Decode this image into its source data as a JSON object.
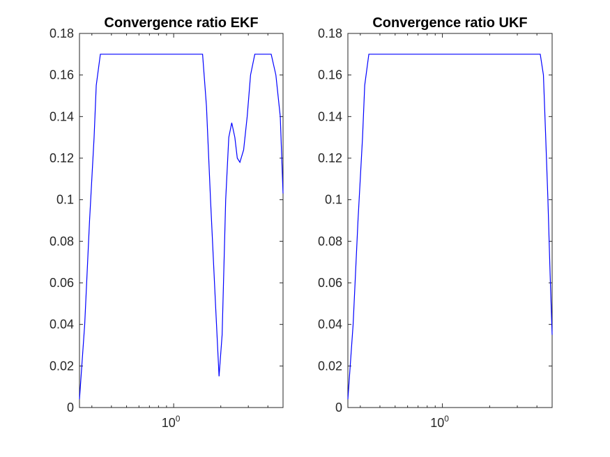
{
  "chart_data": [
    {
      "type": "line",
      "title": "Convergence ratio EKF",
      "xlabel": "",
      "ylabel": "",
      "x_scale": "log",
      "xlim": [
        0.25,
        5
      ],
      "ylim": [
        0,
        0.18
      ],
      "y_ticks": [
        "0",
        "0.02",
        "0.04",
        "0.06",
        "0.08",
        "0.1",
        "0.12",
        "0.14",
        "0.16",
        "0.18"
      ],
      "x_ticks": [
        {
          "value": 1,
          "base": "10",
          "exp": "0"
        }
      ],
      "grid": false,
      "series_color": "#0000ff",
      "series": [
        {
          "x": [
            0.25,
            0.27,
            0.29,
            0.31,
            0.32,
            0.34,
            1.53,
            1.62,
            1.72,
            1.85,
            1.95,
            2.04,
            2.15,
            2.25,
            2.35,
            2.46,
            2.55,
            2.65,
            2.8,
            2.95,
            3.1,
            3.3,
            3.6,
            3.9,
            4.2,
            4.5,
            4.8,
            5.0
          ],
          "y": [
            0.004,
            0.04,
            0.09,
            0.13,
            0.155,
            0.17,
            0.17,
            0.145,
            0.1,
            0.05,
            0.015,
            0.035,
            0.1,
            0.13,
            0.137,
            0.13,
            0.12,
            0.118,
            0.124,
            0.14,
            0.16,
            0.17,
            0.17,
            0.17,
            0.17,
            0.16,
            0.14,
            0.103
          ]
        }
      ]
    },
    {
      "type": "line",
      "title": "Convergence ratio UKF",
      "xlabel": "",
      "ylabel": "",
      "x_scale": "log",
      "xlim": [
        0.25,
        5
      ],
      "ylim": [
        0,
        0.18
      ],
      "y_ticks": [
        "0",
        "0.02",
        "0.04",
        "0.06",
        "0.08",
        "0.1",
        "0.12",
        "0.14",
        "0.16",
        "0.18"
      ],
      "x_ticks": [
        {
          "value": 1,
          "base": "10",
          "exp": "0"
        }
      ],
      "grid": false,
      "series_color": "#0000ff",
      "series": [
        {
          "x": [
            0.25,
            0.27,
            0.29,
            0.31,
            0.32,
            0.34,
            4.2,
            4.4,
            4.55,
            4.7,
            4.85,
            5.0
          ],
          "y": [
            0.004,
            0.04,
            0.09,
            0.13,
            0.155,
            0.17,
            0.17,
            0.16,
            0.13,
            0.1,
            0.065,
            0.035
          ]
        }
      ]
    }
  ]
}
